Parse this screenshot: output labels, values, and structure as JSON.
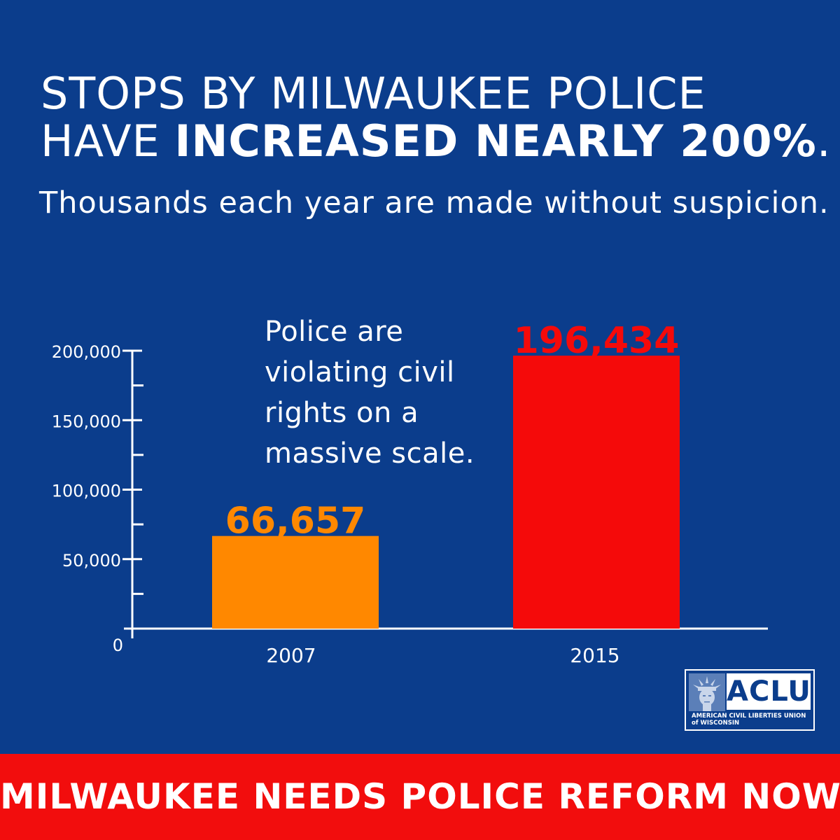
{
  "headline": {
    "line1": "STOPS BY MILWAUKEE POLICE",
    "line2_prefix": "HAVE ",
    "line2_bold": "INCREASED NEARLY 200%",
    "line2_suffix": "."
  },
  "subhead": "Thousands each year are made without suspicion.",
  "annotation": {
    "line1": "Police are",
    "line2": "violating civil",
    "line3": "rights on a",
    "line4": "massive scale."
  },
  "chart_data": {
    "type": "bar",
    "title": "",
    "xlabel": "",
    "ylabel": "",
    "categories": [
      "2007",
      "2015"
    ],
    "values": [
      66657,
      196434
    ],
    "value_labels": [
      "66,657",
      "196,434"
    ],
    "ylim": [
      0,
      200000
    ],
    "y_ticks": [
      0,
      50000,
      100000,
      150000,
      200000
    ],
    "y_tick_labels": [
      "0",
      "50,000",
      "100,000",
      "150,000",
      "200,000"
    ],
    "colors": [
      "#ff8800",
      "#f50a0a"
    ],
    "grid": false
  },
  "logo": {
    "wordmark": "ACLU",
    "tagline_line1": "AMERICAN CIVIL LIBERTIES UNION",
    "tagline_line2": "of WISCONSIN",
    "icon": "statue-of-liberty-icon"
  },
  "footer": {
    "cta": "MILWAUKEE NEEDS POLICE REFORM NOW."
  },
  "colors": {
    "background": "#0b3d8c",
    "footer": "#f20d0d",
    "text": "#ffffff"
  }
}
